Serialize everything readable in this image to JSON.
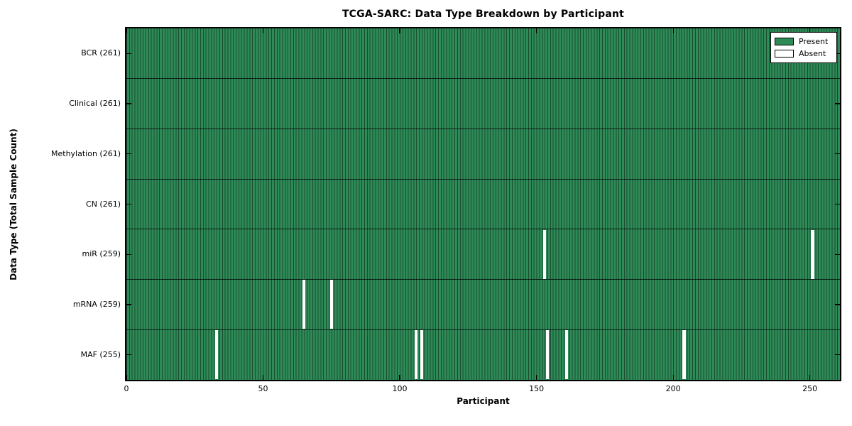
{
  "title": "TCGA-SARC: Data Type Breakdown by Participant",
  "chart_data": {
    "type": "heatmap",
    "title": "TCGA-SARC: Data Type Breakdown by Participant",
    "xlabel": "Participant",
    "ylabel": "Data Type (Total Sample Count)",
    "x_ticks": [
      0,
      50,
      100,
      150,
      200,
      250
    ],
    "xlim": [
      0,
      261
    ],
    "n_participants": 261,
    "grid": false,
    "legend_position": "upper right",
    "legend": [
      {
        "label": "Present",
        "color": "#2e8b57"
      },
      {
        "label": "Absent",
        "color": "#ffffff"
      }
    ],
    "rows": [
      {
        "label": "BCR (261)",
        "data_type": "BCR",
        "total": 261,
        "absent_participants": []
      },
      {
        "label": "Clinical (261)",
        "data_type": "Clinical",
        "total": 261,
        "absent_participants": []
      },
      {
        "label": "Methylation (261)",
        "data_type": "Methylation",
        "total": 261,
        "absent_participants": []
      },
      {
        "label": "CN (261)",
        "data_type": "CN",
        "total": 261,
        "absent_participants": []
      },
      {
        "label": "miR (259)",
        "data_type": "miR",
        "total": 259,
        "absent_participants": [
          153,
          251
        ]
      },
      {
        "label": "mRNA (259)",
        "data_type": "mRNA",
        "total": 259,
        "absent_participants": [
          65,
          75
        ]
      },
      {
        "label": "MAF (255)",
        "data_type": "MAF",
        "total": 255,
        "absent_participants": [
          33,
          106,
          108,
          154,
          161,
          204
        ]
      }
    ],
    "colors": {
      "present": "#2e8b57",
      "absent": "#ffffff",
      "bar_edge": "rgba(0,0,0,0.45)",
      "axis": "#000000"
    }
  }
}
